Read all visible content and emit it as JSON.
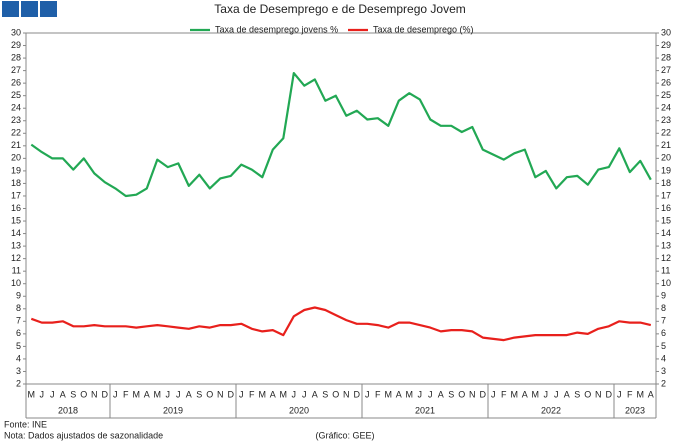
{
  "chart_data": {
    "type": "line",
    "title": "Taxa de Desemprego e de Desemprego Jovem",
    "categories": [
      "M",
      "J",
      "J",
      "A",
      "S",
      "O",
      "N",
      "D",
      "J",
      "F",
      "M",
      "A",
      "M",
      "J",
      "J",
      "A",
      "S",
      "O",
      "N",
      "D",
      "J",
      "F",
      "M",
      "A",
      "M",
      "J",
      "J",
      "A",
      "S",
      "O",
      "N",
      "D",
      "J",
      "F",
      "M",
      "A",
      "M",
      "J",
      "J",
      "A",
      "S",
      "O",
      "N",
      "D",
      "J",
      "F",
      "M",
      "A",
      "M",
      "J",
      "J",
      "A",
      "S",
      "O",
      "N",
      "D",
      "J",
      "F",
      "M",
      "A"
    ],
    "year_groups": [
      {
        "label": "2018",
        "months": 8
      },
      {
        "label": "2019",
        "months": 12
      },
      {
        "label": "2020",
        "months": 12
      },
      {
        "label": "2021",
        "months": 12
      },
      {
        "label": "2022",
        "months": 12
      },
      {
        "label": "2023",
        "months": 4
      }
    ],
    "series": [
      {
        "name": "Taxa de desemprego jovens %",
        "color": "#22a854",
        "values": [
          21.1,
          20.5,
          20.0,
          20.0,
          19.1,
          20.0,
          18.8,
          18.1,
          17.6,
          17.0,
          17.1,
          17.6,
          19.9,
          19.3,
          19.6,
          17.8,
          18.7,
          17.6,
          18.4,
          18.6,
          19.5,
          19.1,
          18.5,
          20.7,
          21.6,
          26.8,
          25.8,
          26.3,
          24.6,
          25.0,
          23.4,
          23.8,
          23.1,
          23.2,
          22.6,
          24.6,
          25.2,
          24.7,
          23.1,
          22.6,
          22.6,
          22.1,
          22.5,
          20.7,
          20.3,
          19.9,
          20.4,
          20.7,
          18.5,
          19.0,
          17.6,
          18.5,
          18.6,
          17.9,
          19.1,
          19.3,
          20.8,
          18.9,
          19.8,
          18.3
        ]
      },
      {
        "name": "Taxa de desemprego (%)",
        "color": "#e8201c",
        "values": [
          7.2,
          6.9,
          6.9,
          7.0,
          6.6,
          6.6,
          6.7,
          6.6,
          6.6,
          6.6,
          6.5,
          6.6,
          6.7,
          6.6,
          6.5,
          6.4,
          6.6,
          6.5,
          6.7,
          6.7,
          6.8,
          6.4,
          6.2,
          6.3,
          5.9,
          7.4,
          7.9,
          8.1,
          7.9,
          7.5,
          7.1,
          6.8,
          6.8,
          6.7,
          6.5,
          6.9,
          6.9,
          6.7,
          6.5,
          6.2,
          6.3,
          6.3,
          6.2,
          5.7,
          5.6,
          5.5,
          5.7,
          5.8,
          5.9,
          5.9,
          5.9,
          5.9,
          6.1,
          6.0,
          6.4,
          6.6,
          7.0,
          6.9,
          6.9,
          6.7
        ]
      }
    ],
    "ylim": [
      2,
      30
    ],
    "yticks": [
      2,
      3,
      4,
      5,
      6,
      7,
      8,
      9,
      10,
      11,
      12,
      13,
      14,
      15,
      16,
      17,
      18,
      19,
      20,
      21,
      22,
      23,
      24,
      25,
      26,
      27,
      28,
      29,
      30
    ],
    "y2lim": [
      2,
      30
    ],
    "y2ticks": [
      2,
      3,
      4,
      5,
      6,
      7,
      8,
      9,
      10,
      11,
      12,
      13,
      14,
      15,
      16,
      17,
      18,
      19,
      20,
      21,
      22,
      23,
      24,
      25,
      26,
      27,
      28,
      29,
      30
    ],
    "grid": false,
    "legend": "top",
    "notes": [
      "Fonte: INE",
      "Nota: Dados ajustados de sazonalidade"
    ],
    "credit": "(Gráfico: GEE)"
  }
}
